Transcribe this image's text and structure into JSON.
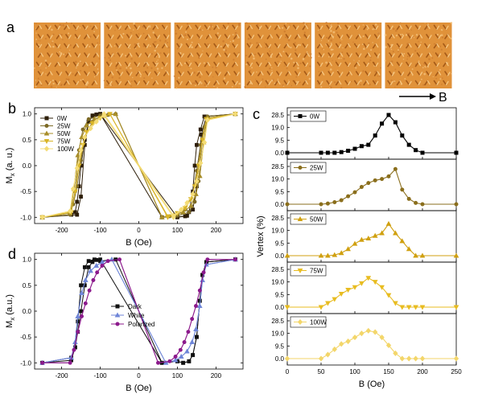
{
  "panel_labels": {
    "a": "a",
    "b": "b",
    "c": "c",
    "d": "d"
  },
  "field_arrow_label": "B",
  "tile_colors": {
    "base": "#e0923a",
    "dark": "#a55a18",
    "light": "#f6c680"
  },
  "tile_count": 6,
  "chart_data": [
    {
      "id": "b",
      "type": "line",
      "xlabel": "B (Oe)",
      "ylabel": "Mx (a. u.)",
      "ylabel_main": "M",
      "ylabel_sub": "x",
      "ylabel_rest": " (a. u.)",
      "xlim": [
        -270,
        270
      ],
      "ylim": [
        -1.12,
        1.12
      ],
      "xticks": [
        -200,
        -100,
        0,
        100,
        200
      ],
      "yticks": [
        -1.0,
        -0.5,
        0.0,
        0.5,
        1.0
      ],
      "xtick_labels": [
        "-200",
        "-100",
        "0",
        "100",
        "200"
      ],
      "ytick_labels": [
        "-1.0",
        "-0.5",
        "0.0",
        "0.5",
        "1.0"
      ],
      "legend_position": "top-left",
      "series": [
        {
          "name": "0W",
          "color": "#2e1f0a",
          "marker": "square",
          "desc_x": [
            250,
            175,
            162,
            150,
            140,
            125,
            100,
            -100,
            -110,
            -120,
            -130,
            -140,
            -150,
            -155,
            -160,
            -165,
            -175,
            -250
          ],
          "desc_y": [
            1.0,
            0.95,
            0.6,
            -0.4,
            -0.85,
            -0.97,
            -1.0,
            1.0,
            0.99,
            0.95,
            0.85,
            0.5,
            0.0,
            -0.4,
            -0.7,
            -0.9,
            -0.95,
            -1.0
          ],
          "asc_x": [
            -250,
            -160,
            -150,
            -140,
            -130,
            -120,
            -100,
            60,
            100,
            120,
            130,
            140,
            145,
            150,
            160,
            170,
            250
          ],
          "asc_y": [
            -1.0,
            -0.95,
            -0.6,
            0.4,
            0.85,
            0.97,
            1.0,
            -1.0,
            -0.99,
            -0.98,
            -0.9,
            -0.5,
            0.0,
            0.4,
            0.7,
            0.95,
            1.0
          ]
        },
        {
          "name": "25W",
          "color": "#7d6a26",
          "marker": "circle",
          "desc_x": [
            250,
            178,
            165,
            155,
            145,
            130,
            100,
            60,
            -60,
            -80,
            -100,
            -120,
            -140,
            -150,
            -160,
            -170,
            -180,
            -250
          ],
          "desc_y": [
            1.0,
            0.95,
            0.5,
            -0.3,
            -0.7,
            -0.9,
            -0.97,
            -1.0,
            1.0,
            0.98,
            0.95,
            0.85,
            0.55,
            0.1,
            -0.4,
            -0.75,
            -0.92,
            -1.0
          ],
          "asc_x": [
            -250,
            -178,
            -165,
            -155,
            -145,
            -130,
            -100,
            -60,
            60,
            80,
            100,
            120,
            140,
            150,
            160,
            170,
            180,
            250
          ],
          "asc_y": [
            -1.0,
            -0.95,
            -0.5,
            0.3,
            0.7,
            0.9,
            0.97,
            1.0,
            -1.0,
            -0.98,
            -0.95,
            -0.85,
            -0.55,
            -0.1,
            0.4,
            0.75,
            0.92,
            1.0
          ]
        },
        {
          "name": "50W",
          "color": "#a88e2a",
          "marker": "triangle-up",
          "desc_x": [
            250,
            178,
            168,
            158,
            148,
            135,
            115,
            90,
            60,
            -60,
            -90,
            -115,
            -135,
            -148,
            -158,
            -168,
            -178,
            -250
          ],
          "desc_y": [
            1.0,
            0.92,
            0.45,
            -0.2,
            -0.55,
            -0.78,
            -0.9,
            -0.96,
            -1.0,
            1.0,
            0.96,
            0.9,
            0.78,
            0.55,
            0.2,
            -0.45,
            -0.92,
            -1.0
          ],
          "asc_x": [
            -250,
            -178,
            -168,
            -158,
            -148,
            -135,
            -115,
            -90,
            -60,
            60,
            90,
            115,
            135,
            148,
            158,
            168,
            178,
            250
          ],
          "asc_y": [
            -1.0,
            -0.92,
            -0.45,
            0.2,
            0.55,
            0.78,
            0.9,
            0.96,
            1.0,
            -1.0,
            -0.96,
            -0.9,
            -0.78,
            -0.55,
            -0.2,
            0.45,
            0.92,
            1.0
          ]
        },
        {
          "name": "75W",
          "color": "#d9b528",
          "marker": "triangle-down",
          "desc_x": [
            250,
            175,
            165,
            155,
            145,
            135,
            120,
            100,
            75,
            -75,
            -100,
            -120,
            -135,
            -145,
            -155,
            -165,
            -175,
            -250
          ],
          "desc_y": [
            1.0,
            0.9,
            0.5,
            0.0,
            -0.4,
            -0.65,
            -0.82,
            -0.92,
            -0.98,
            1.0,
            0.92,
            0.82,
            0.65,
            0.4,
            0.0,
            -0.5,
            -0.9,
            -1.0
          ],
          "asc_x": [
            -250,
            -175,
            -165,
            -155,
            -145,
            -135,
            -120,
            -100,
            -75,
            75,
            100,
            120,
            135,
            145,
            155,
            165,
            175,
            250
          ],
          "asc_y": [
            -1.0,
            -0.9,
            -0.5,
            0.0,
            0.4,
            0.65,
            0.82,
            0.92,
            1.0,
            -1.0,
            -0.92,
            -0.82,
            -0.65,
            -0.4,
            0.0,
            0.5,
            0.9,
            1.0
          ]
        },
        {
          "name": "100W",
          "color": "#f4dc76",
          "marker": "diamond",
          "desc_x": [
            250,
            178,
            170,
            160,
            150,
            140,
            125,
            110,
            90,
            -90,
            -110,
            -125,
            -140,
            -150,
            -160,
            -170,
            -178,
            -250
          ],
          "desc_y": [
            1.0,
            0.88,
            0.45,
            0.05,
            -0.3,
            -0.55,
            -0.72,
            -0.85,
            -0.97,
            1.0,
            0.85,
            0.72,
            0.55,
            0.3,
            -0.05,
            -0.45,
            -0.88,
            -1.0
          ],
          "asc_x": [
            -250,
            -178,
            -170,
            -160,
            -150,
            -140,
            -125,
            -110,
            -90,
            90,
            110,
            125,
            140,
            150,
            160,
            170,
            178,
            250
          ],
          "asc_y": [
            -1.0,
            -0.88,
            -0.45,
            -0.05,
            0.3,
            0.55,
            0.72,
            0.85,
            0.97,
            -1.0,
            -0.85,
            -0.72,
            -0.55,
            -0.3,
            0.05,
            0.45,
            0.88,
            1.0
          ]
        }
      ]
    },
    {
      "id": "c",
      "type": "line",
      "xlabel": "B (Oe)",
      "ylabel": "Vertex (%)",
      "xlim": [
        0,
        250
      ],
      "xticks": [
        0,
        50,
        100,
        150,
        200,
        250
      ],
      "xtick_labels": [
        "0",
        "50",
        "100",
        "150",
        "200",
        "250"
      ],
      "ylim": [
        0,
        28.5
      ],
      "yticks": [
        0.0,
        9.5,
        19.0,
        28.5
      ],
      "ytick_labels": [
        "0.0",
        "9.5",
        "19.0",
        "28.5"
      ],
      "legend_position": "top-left",
      "subplots": [
        {
          "name": "0W",
          "color": "#000000",
          "marker": "square",
          "x": [
            0,
            50,
            60,
            70,
            80,
            90,
            100,
            110,
            120,
            130,
            140,
            150,
            160,
            170,
            180,
            190,
            200,
            250
          ],
          "y": [
            0,
            0,
            0,
            0,
            0.5,
            1.5,
            3,
            5,
            6,
            13,
            22,
            28.5,
            23,
            13,
            6,
            2,
            0,
            0
          ]
        },
        {
          "name": "25W",
          "color": "#8a6e1c",
          "marker": "circle",
          "x": [
            0,
            50,
            60,
            70,
            80,
            90,
            100,
            110,
            120,
            130,
            140,
            150,
            160,
            170,
            180,
            190,
            200,
            250
          ],
          "y": [
            0,
            0,
            0.5,
            1.5,
            3,
            6,
            9,
            13,
            16,
            18,
            19,
            21,
            26.5,
            11,
            4,
            1,
            0,
            0
          ]
        },
        {
          "name": "50W",
          "color": "#d0a010",
          "marker": "triangle-up",
          "x": [
            0,
            50,
            60,
            70,
            80,
            90,
            100,
            110,
            120,
            130,
            140,
            150,
            160,
            170,
            180,
            190,
            200,
            250
          ],
          "y": [
            0,
            0,
            0,
            0.5,
            2,
            5,
            9,
            12,
            13,
            15,
            17,
            24,
            17,
            11,
            5,
            0,
            0,
            0
          ]
        },
        {
          "name": "75W",
          "color": "#e8bc20",
          "marker": "triangle-down",
          "x": [
            0,
            50,
            60,
            70,
            80,
            90,
            100,
            110,
            120,
            130,
            140,
            150,
            160,
            170,
            180,
            190,
            200,
            250
          ],
          "y": [
            0,
            0,
            3,
            6,
            10,
            13,
            15,
            18,
            22,
            19,
            15,
            9,
            3,
            0,
            0,
            0,
            0,
            0
          ]
        },
        {
          "name": "100W",
          "color": "#f3d66a",
          "marker": "diamond",
          "x": [
            0,
            50,
            60,
            70,
            80,
            90,
            100,
            110,
            120,
            130,
            140,
            150,
            160,
            170,
            180,
            190,
            200,
            250
          ],
          "y": [
            0,
            0,
            3,
            7,
            11,
            13,
            16,
            19,
            21,
            20,
            16,
            10,
            4,
            0,
            0,
            0,
            0,
            0
          ]
        }
      ]
    },
    {
      "id": "d",
      "type": "line",
      "xlabel": "B (Oe)",
      "ylabel": "Mx (a.u.)",
      "ylabel_main": "M",
      "ylabel_sub": "x",
      "ylabel_rest": " (a.u.)",
      "xlim": [
        -270,
        270
      ],
      "ylim": [
        -1.12,
        1.12
      ],
      "xticks": [
        -200,
        -100,
        0,
        100,
        200
      ],
      "yticks": [
        -1.0,
        -0.5,
        0.0,
        0.5,
        1.0
      ],
      "xtick_labels": [
        "-200",
        "-100",
        "0",
        "100",
        "200"
      ],
      "ytick_labels": [
        "-1.0",
        "-0.5",
        "0.0",
        "0.5",
        "1.0"
      ],
      "legend_position": "center",
      "series": [
        {
          "name": "Dark",
          "color": "#111111",
          "marker": "square",
          "desc_x": [
            250,
            175,
            165,
            158,
            150,
            140,
            130,
            115,
            100,
            60,
            -100,
            -110,
            -120,
            -130,
            -140,
            -150,
            -158,
            -165,
            -175,
            -250
          ],
          "desc_y": [
            1.0,
            0.95,
            0.7,
            0.2,
            -0.5,
            -0.85,
            -0.97,
            -1.0,
            -0.97,
            -1.0,
            1.0,
            0.99,
            0.95,
            0.85,
            0.5,
            0.0,
            -0.4,
            -0.7,
            -0.9,
            -1.0
          ],
          "asc_x": [
            -250,
            -175,
            -165,
            -158,
            -150,
            -140,
            -130,
            -115,
            -100,
            -60,
            60,
            100,
            115,
            130,
            140,
            150,
            158,
            165,
            175,
            250
          ],
          "asc_y": [
            -1.0,
            -0.95,
            -0.7,
            -0.2,
            0.5,
            0.85,
            0.97,
            1.0,
            0.97,
            1.0,
            -1.0,
            -0.97,
            -1.0,
            -0.97,
            -0.85,
            -0.5,
            0.2,
            0.7,
            0.95,
            1.0
          ]
        },
        {
          "name": "White",
          "color": "#6f86d8",
          "marker": "triangle-up",
          "desc_x": [
            250,
            175,
            165,
            158,
            148,
            138,
            125,
            110,
            95,
            70,
            -70,
            -95,
            -110,
            -125,
            -138,
            -148,
            -158,
            -165,
            -175,
            -250
          ],
          "desc_y": [
            1.0,
            0.9,
            0.6,
            0.1,
            -0.35,
            -0.6,
            -0.78,
            -0.88,
            -0.95,
            -1.0,
            1.0,
            0.95,
            0.88,
            0.78,
            0.6,
            0.35,
            -0.1,
            -0.6,
            -0.9,
            -1.0
          ],
          "asc_x": [
            -250,
            -175,
            -165,
            -158,
            -148,
            -138,
            -125,
            -110,
            -95,
            -70,
            70,
            95,
            110,
            125,
            138,
            148,
            158,
            165,
            175,
            250
          ],
          "asc_y": [
            -1.0,
            -0.9,
            -0.6,
            -0.1,
            0.35,
            0.6,
            0.78,
            0.88,
            0.95,
            1.0,
            -1.0,
            -0.95,
            -0.88,
            -0.78,
            -0.6,
            -0.35,
            0.1,
            0.6,
            0.9,
            1.0
          ]
        },
        {
          "name": "Polarized",
          "color": "#8c1a8c",
          "marker": "circle",
          "desc_x": [
            250,
            178,
            168,
            158,
            148,
            138,
            128,
            118,
            108,
            95,
            80,
            50,
            -50,
            -80,
            -95,
            -108,
            -118,
            -128,
            -138,
            -148,
            -158,
            -168,
            -178,
            -250
          ],
          "desc_y": [
            1.0,
            1.0,
            0.75,
            0.4,
            0.1,
            -0.15,
            -0.4,
            -0.6,
            -0.75,
            -0.88,
            -0.97,
            -1.0,
            1.0,
            0.97,
            0.88,
            0.75,
            0.6,
            0.4,
            0.15,
            -0.1,
            -0.4,
            -0.75,
            -1.0,
            -1.0
          ],
          "asc_x": [
            -250,
            -178,
            -168,
            -158,
            -148,
            -138,
            -128,
            -118,
            -108,
            -95,
            -80,
            -50,
            50,
            80,
            95,
            108,
            118,
            128,
            138,
            148,
            158,
            168,
            178,
            250
          ],
          "asc_y": [
            -1.0,
            -1.0,
            -0.75,
            -0.4,
            -0.1,
            0.15,
            0.4,
            0.6,
            0.75,
            0.88,
            0.97,
            1.0,
            -1.0,
            -0.97,
            -0.88,
            -0.75,
            -0.6,
            -0.4,
            -0.15,
            0.1,
            0.4,
            0.75,
            1.0,
            1.0
          ]
        }
      ]
    }
  ]
}
